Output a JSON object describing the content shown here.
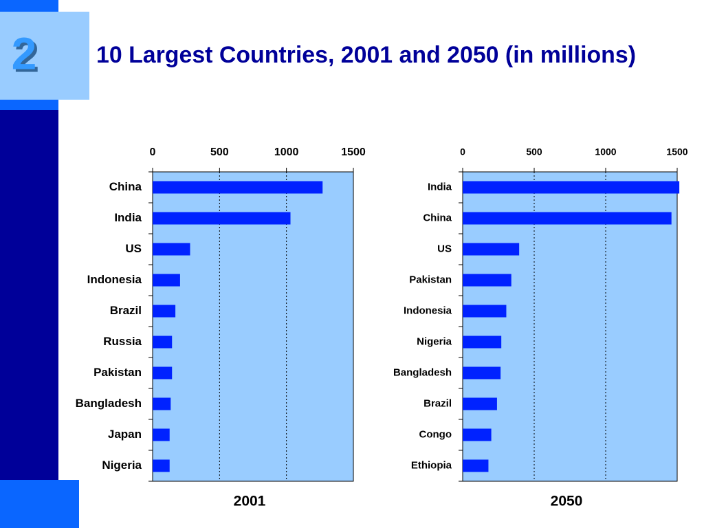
{
  "slide_number": "2",
  "title": "10 Largest Countries, 2001 and 2050 (in millions)",
  "chart_data": [
    {
      "type": "bar",
      "orientation": "horizontal",
      "xlabel": "2001",
      "categories": [
        "China",
        "India",
        "US",
        "Indonesia",
        "Brazil",
        "Russia",
        "Pakistan",
        "Bangladesh",
        "Japan",
        "Nigeria"
      ],
      "values": [
        1270,
        1030,
        280,
        205,
        170,
        145,
        145,
        135,
        127,
        127
      ],
      "color": "#0022ff",
      "xlim": [
        0,
        1500
      ],
      "xticks": [
        0,
        500,
        1000,
        1500
      ],
      "grid": true
    },
    {
      "type": "bar",
      "orientation": "horizontal",
      "xlabel": "2050",
      "categories": [
        "India",
        "China",
        "US",
        "Pakistan",
        "Indonesia",
        "Nigeria",
        "Bangladesh",
        "Brazil",
        "Congo",
        "Ethiopia"
      ],
      "values": [
        1515,
        1460,
        395,
        340,
        305,
        270,
        265,
        240,
        200,
        180
      ],
      "color": "#0022ff",
      "xlim": [
        0,
        1500
      ],
      "xticks": [
        0,
        500,
        1000,
        1500
      ],
      "grid": true
    }
  ]
}
